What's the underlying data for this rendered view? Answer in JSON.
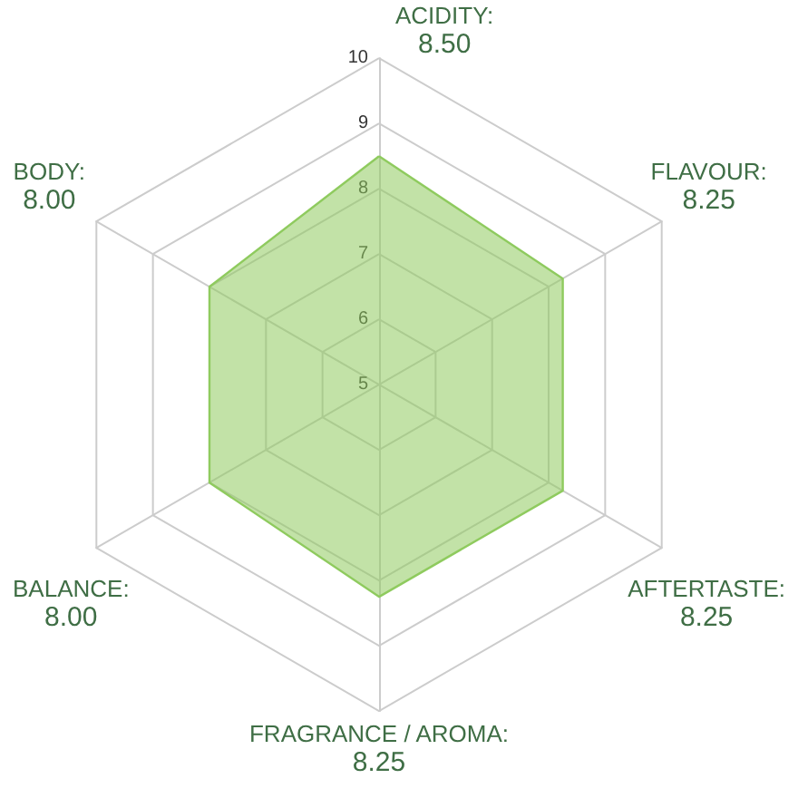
{
  "chart_data": {
    "type": "radar",
    "categories": [
      "ACIDITY:\n8.50",
      "FLAVOUR:\n8.25",
      "AFTERTASTE:\n8.25",
      "FRAGRANCE / AROMA:\n8.25",
      "BALANCE:\n8.00",
      "BODY:\n8.00"
    ],
    "series": [
      {
        "color": "#8fcb5f",
        "values": [
          8.5,
          8.25,
          8.25,
          8.25,
          8.0,
          8.0
        ]
      }
    ],
    "ylim": [
      5,
      10
    ],
    "yticks": [
      5,
      6,
      7,
      8,
      9,
      10
    ],
    "grid": true,
    "marker": "none"
  }
}
